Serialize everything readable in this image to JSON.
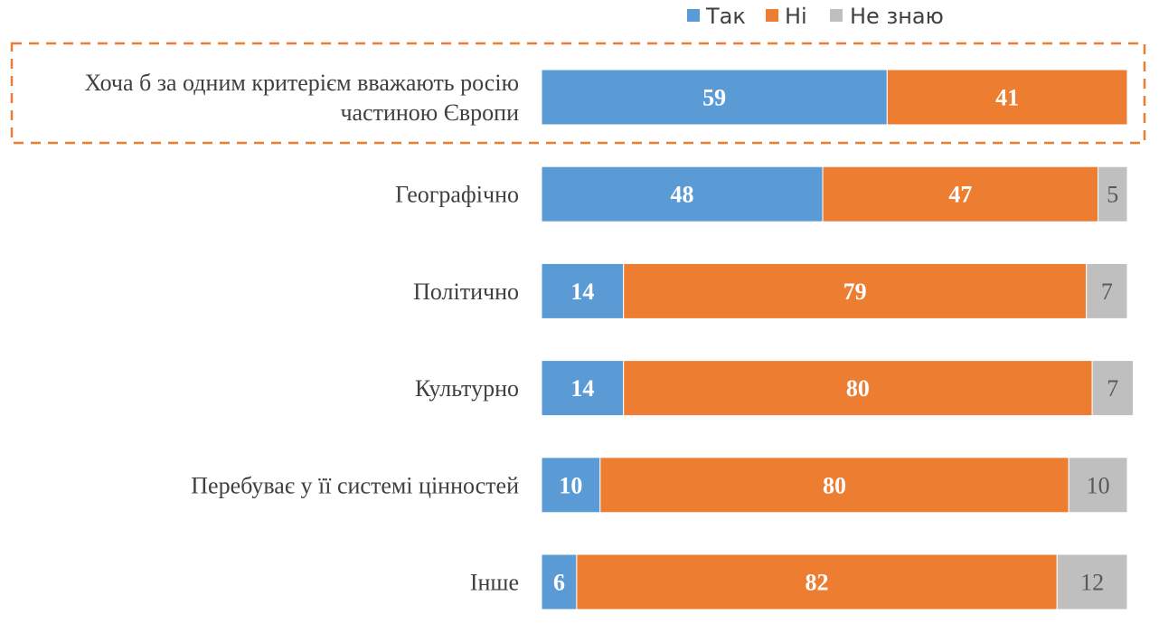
{
  "chart_data": {
    "type": "bar",
    "orientation": "horizontal",
    "stacked": true,
    "xlim": [
      0,
      100
    ],
    "grid": false,
    "legend_position": "top-right",
    "categories": [
      [
        "Хоча б за одним критерієм вважають росію",
        "частиною Європи"
      ],
      [
        "Географічно"
      ],
      [
        "Політично"
      ],
      [
        "Культурно"
      ],
      [
        "Перебуває у її системі цінностей"
      ],
      [
        "Інше"
      ]
    ],
    "highlighted_category_index": 0,
    "series": [
      {
        "name": "Так",
        "color": "#5b9bd5",
        "values": [
          59,
          48,
          14,
          14,
          10,
          6
        ],
        "labels": [
          "59",
          "48",
          "14",
          "14",
          "10",
          "6"
        ]
      },
      {
        "name": "Ні",
        "color": "#ed7d31",
        "values": [
          41,
          47,
          79,
          80,
          80,
          82
        ],
        "labels": [
          "41",
          "47",
          "79",
          "80",
          "80",
          "82"
        ]
      },
      {
        "name": "Не знаю",
        "color": "#bfbfbf",
        "values": [
          0,
          5,
          7,
          7,
          10,
          12
        ],
        "labels": [
          "",
          "5",
          "7",
          "7",
          "10",
          "12"
        ]
      }
    ],
    "highlight_color": "#ed7d31"
  }
}
